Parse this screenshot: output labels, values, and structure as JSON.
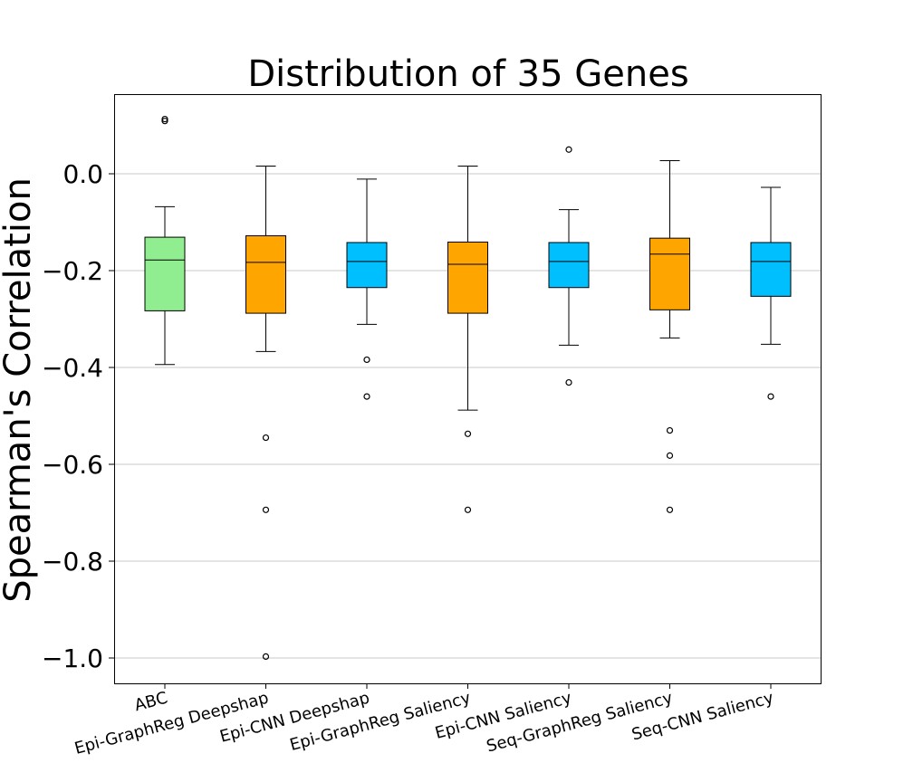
{
  "chart_data": {
    "type": "box",
    "title": "Distribution of 35 Genes",
    "xlabel": "",
    "ylabel": "Spearman's Correlation",
    "ylim": [
      -1.05,
      0.165
    ],
    "yticks": [
      0.0,
      -0.2,
      -0.4,
      -0.6,
      -0.8,
      -1.0
    ],
    "ytick_labels": [
      "0.0",
      "−0.2",
      "−0.4",
      "−0.6",
      "−0.8",
      "−1.0"
    ],
    "grid": "horizontal",
    "categories": [
      "ABC",
      "Epi-GraphReg Deepshap",
      "Epi-CNN Deepshap",
      "Epi-GraphReg Saliency",
      "Epi-CNN Saliency",
      "Seq-GraphReg Saliency",
      "Seq-CNN Saliency"
    ],
    "boxes": [
      {
        "whisker_low": -0.394,
        "q1": -0.283,
        "median": -0.178,
        "q3": -0.131,
        "whisker_high": -0.068,
        "fliers": [
          0.113,
          0.109
        ],
        "color": "#90EE90"
      },
      {
        "whisker_low": -0.367,
        "q1": -0.288,
        "median": -0.183,
        "q3": -0.128,
        "whisker_high": 0.016,
        "fliers": [
          -0.545,
          -0.694,
          -0.997
        ],
        "color": "#FFA500"
      },
      {
        "whisker_low": -0.311,
        "q1": -0.235,
        "median": -0.181,
        "q3": -0.142,
        "whisker_high": -0.011,
        "fliers": [
          -0.384,
          -0.46
        ],
        "color": "#00BFFF"
      },
      {
        "whisker_low": -0.488,
        "q1": -0.288,
        "median": -0.187,
        "q3": -0.141,
        "whisker_high": 0.016,
        "fliers": [
          -0.537,
          -0.694
        ],
        "color": "#FFA500"
      },
      {
        "whisker_low": -0.354,
        "q1": -0.235,
        "median": -0.181,
        "q3": -0.142,
        "whisker_high": -0.074,
        "fliers": [
          0.05,
          -0.431
        ],
        "color": "#00BFFF"
      },
      {
        "whisker_low": -0.339,
        "q1": -0.281,
        "median": -0.166,
        "q3": -0.133,
        "whisker_high": 0.027,
        "fliers": [
          -0.53,
          -0.582,
          -0.694
        ],
        "color": "#FFA500"
      },
      {
        "whisker_low": -0.352,
        "q1": -0.253,
        "median": -0.181,
        "q3": -0.142,
        "whisker_high": -0.028,
        "fliers": [
          -0.46
        ],
        "color": "#00BFFF"
      }
    ]
  }
}
